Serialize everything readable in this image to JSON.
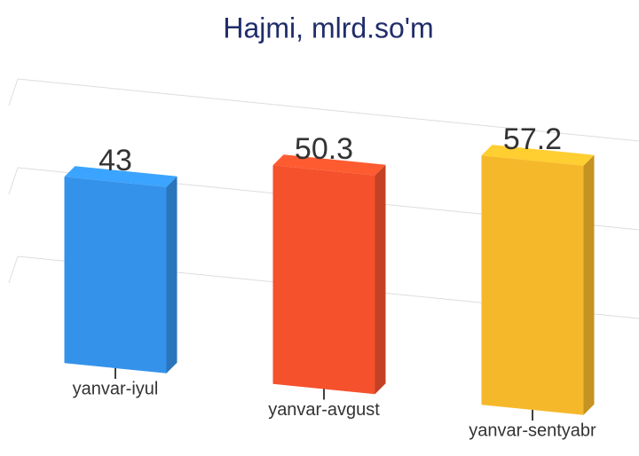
{
  "chart_data": {
    "type": "bar3d",
    "title": "Hajmi, mlrd.so'm",
    "categories": [
      "yanvar-iyul",
      "yanvar-avgust",
      "yanvar-sentyabr"
    ],
    "values": [
      43,
      50.3,
      57.2
    ],
    "colors": [
      "#3592ea",
      "#f5512c",
      "#f6b82b"
    ],
    "ylim": [
      0,
      60
    ],
    "yticks": [
      20,
      40,
      60
    ],
    "grid": true
  }
}
